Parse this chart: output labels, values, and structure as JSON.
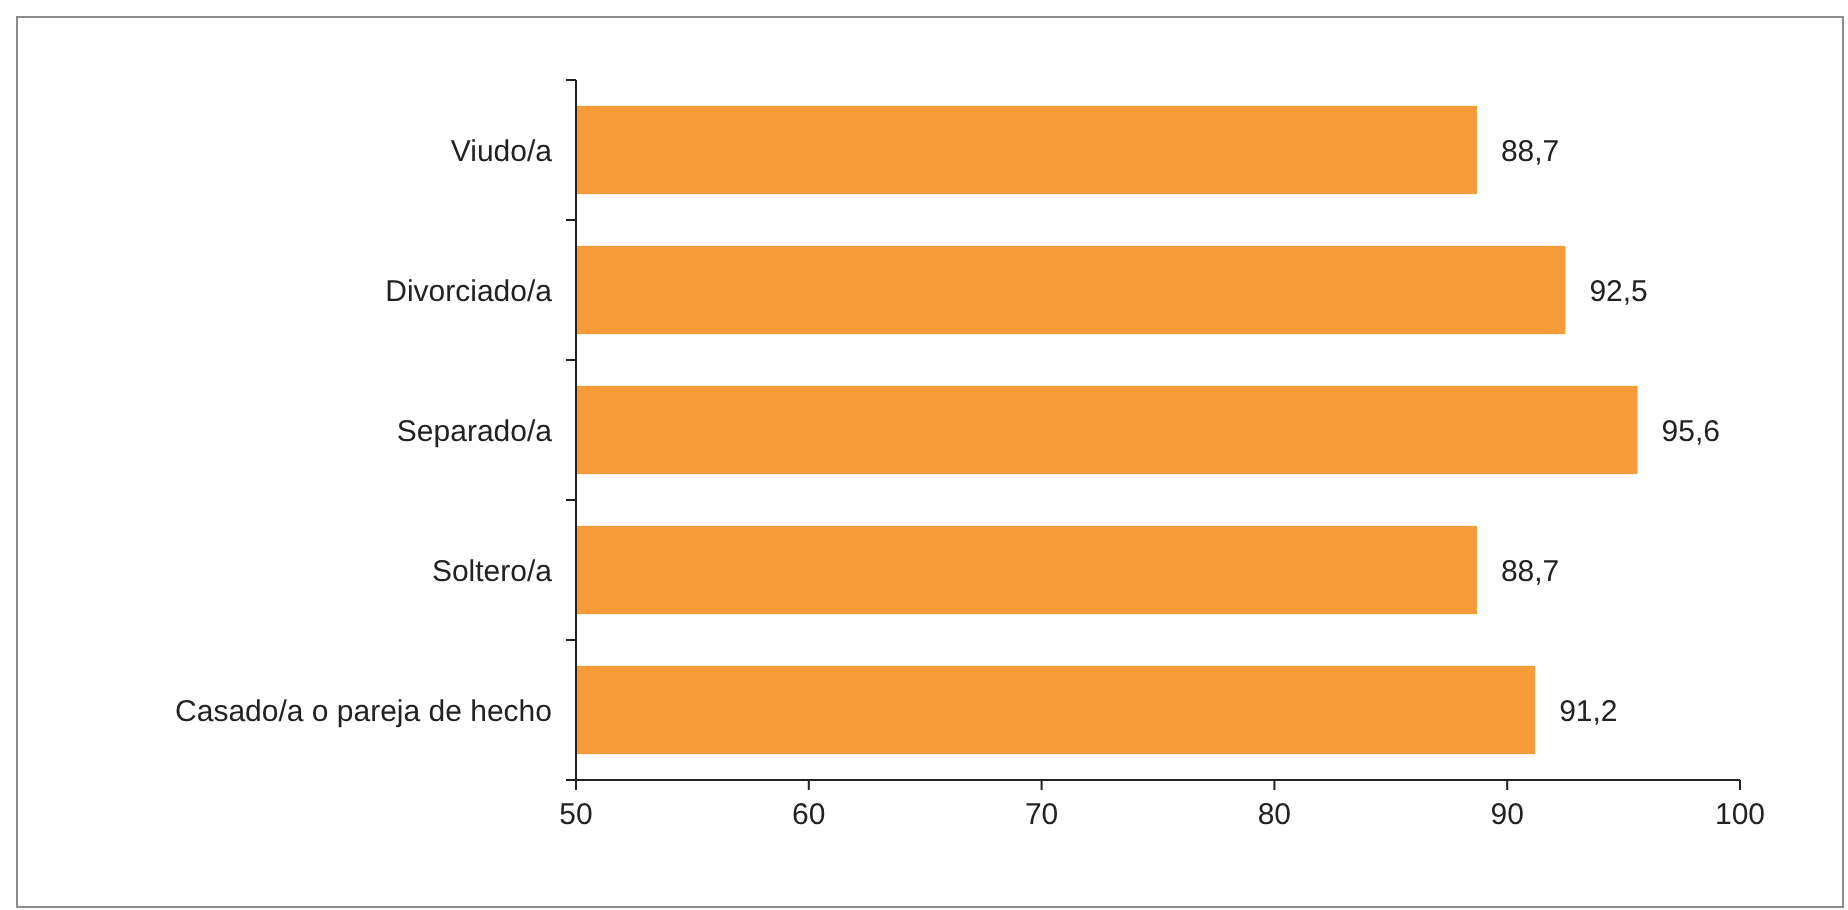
{
  "chart_data": {
    "type": "bar",
    "orientation": "horizontal",
    "categories": [
      "Viudo/a",
      "Divorciado/a",
      "Separado/a",
      "Soltero/a",
      "Casado/a o pareja de hecho"
    ],
    "values": [
      88.7,
      92.5,
      95.6,
      88.7,
      91.2
    ],
    "value_labels": [
      "88,7",
      "92,5",
      "95,6",
      "88,7",
      "91,2"
    ],
    "color": "#f79a38",
    "xlim": [
      50,
      100
    ],
    "xticks": [
      50,
      60,
      70,
      80,
      90,
      100
    ],
    "grid": false
  }
}
